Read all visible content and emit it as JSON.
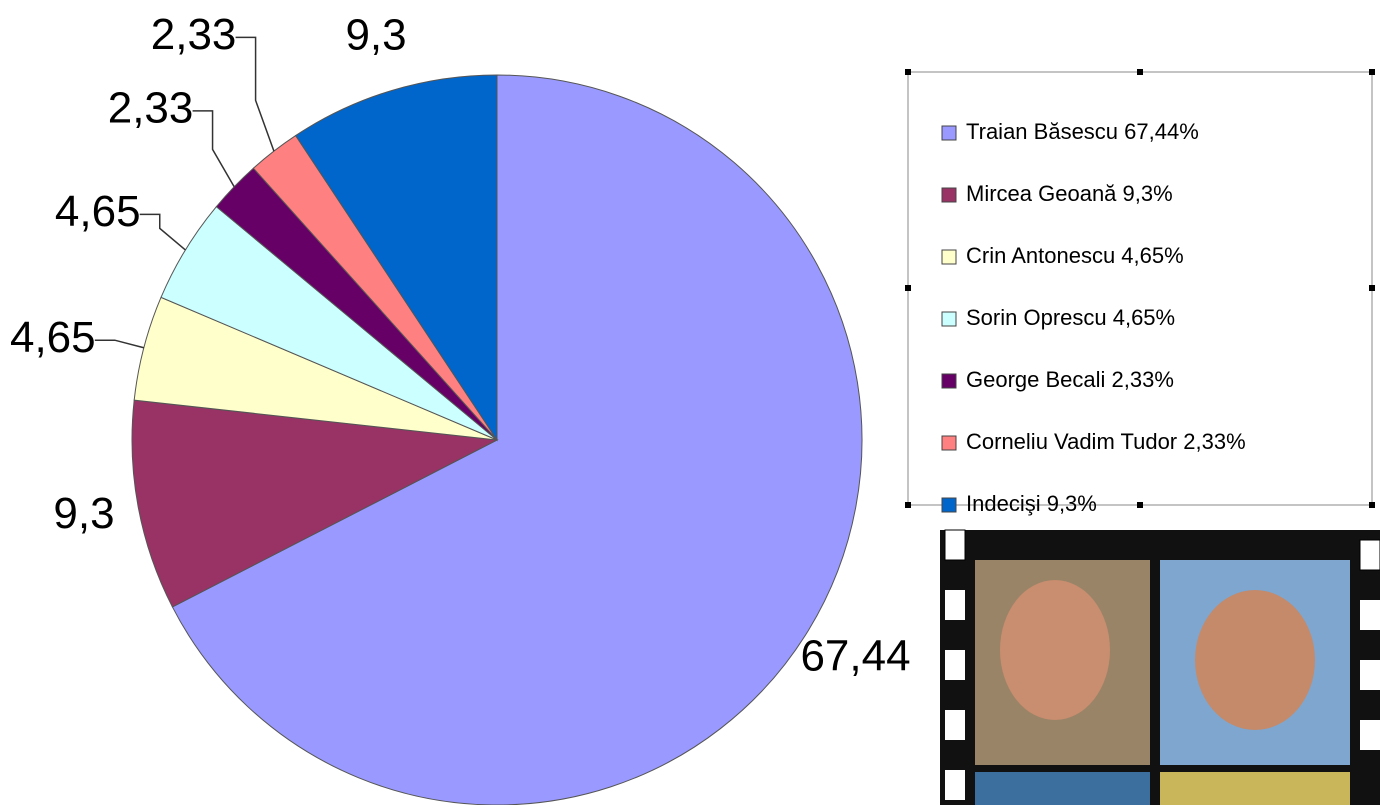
{
  "chart_data": {
    "type": "pie",
    "categories": [
      "Traian Băsescu 67,44%",
      "Mircea Geoană 9,3%",
      "Crin Antonescu 4,65%",
      "Sorin Oprescu 4,65%",
      "George Becali 2,33%",
      "Corneliu Vadim Tudor 2,33%",
      "Indecişi 9,3%"
    ],
    "values": [
      67.44,
      9.3,
      4.65,
      4.65,
      2.33,
      2.33,
      9.3
    ],
    "value_labels": [
      "67,44",
      "9,3",
      "4,65",
      "4,65",
      "2,33",
      "2,33",
      "9,3"
    ],
    "colors": [
      "#9999ff",
      "#993366",
      "#ffffcc",
      "#ccffff",
      "#660066",
      "#ff8080",
      "#0066cc"
    ],
    "legend": "right"
  }
}
